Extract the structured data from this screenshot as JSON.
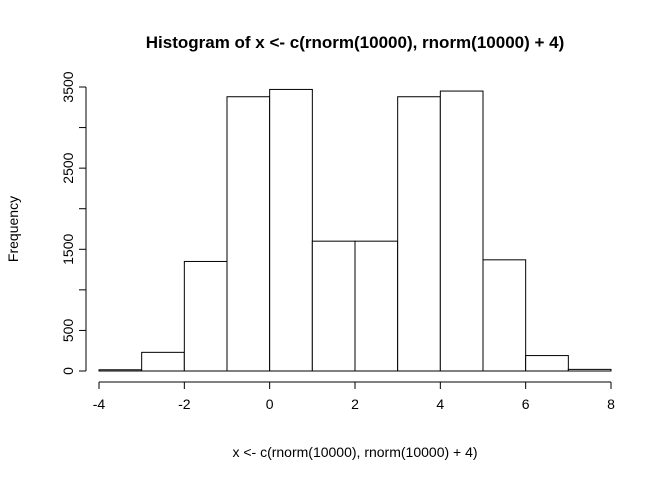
{
  "chart_data": {
    "type": "bar",
    "title": "Histogram of x <- c(rnorm(10000), rnorm(10000) + 4)",
    "xlabel": "x <- c(rnorm(10000), rnorm(10000) + 4)",
    "ylabel": "Frequency",
    "bins": [
      {
        "from": -4,
        "to": -3,
        "count": 15
      },
      {
        "from": -3,
        "to": -2,
        "count": 230
      },
      {
        "from": -2,
        "to": -1,
        "count": 1350
      },
      {
        "from": -1,
        "to": 0,
        "count": 3380
      },
      {
        "from": 0,
        "to": 1,
        "count": 3470
      },
      {
        "from": 1,
        "to": 2,
        "count": 1600
      },
      {
        "from": 2,
        "to": 3,
        "count": 1600
      },
      {
        "from": 3,
        "to": 4,
        "count": 3380
      },
      {
        "from": 4,
        "to": 5,
        "count": 3450
      },
      {
        "from": 5,
        "to": 6,
        "count": 1370
      },
      {
        "from": 6,
        "to": 7,
        "count": 190
      },
      {
        "from": 7,
        "to": 8,
        "count": 20
      }
    ],
    "xlim": [
      -4,
      8
    ],
    "ylim": [
      0,
      3500
    ],
    "x_ticks": [
      {
        "value": -4,
        "label": "-4"
      },
      {
        "value": -2,
        "label": "-2"
      },
      {
        "value": 0,
        "label": "0"
      },
      {
        "value": 2,
        "label": "2"
      },
      {
        "value": 4,
        "label": "4"
      },
      {
        "value": 6,
        "label": "6"
      },
      {
        "value": 8,
        "label": "8"
      }
    ],
    "y_ticks": [
      {
        "value": 0,
        "label": "0"
      },
      {
        "value": 500,
        "label": "500"
      },
      {
        "value": 1500,
        "label": "1500"
      },
      {
        "value": 2500,
        "label": "2500"
      },
      {
        "value": 3500,
        "label": "3500"
      }
    ],
    "y_minor_ticks": [
      1000,
      2000,
      3000
    ],
    "grid": false,
    "legend": "none",
    "bar_fill": "#ffffff",
    "bar_stroke": "#000000"
  }
}
